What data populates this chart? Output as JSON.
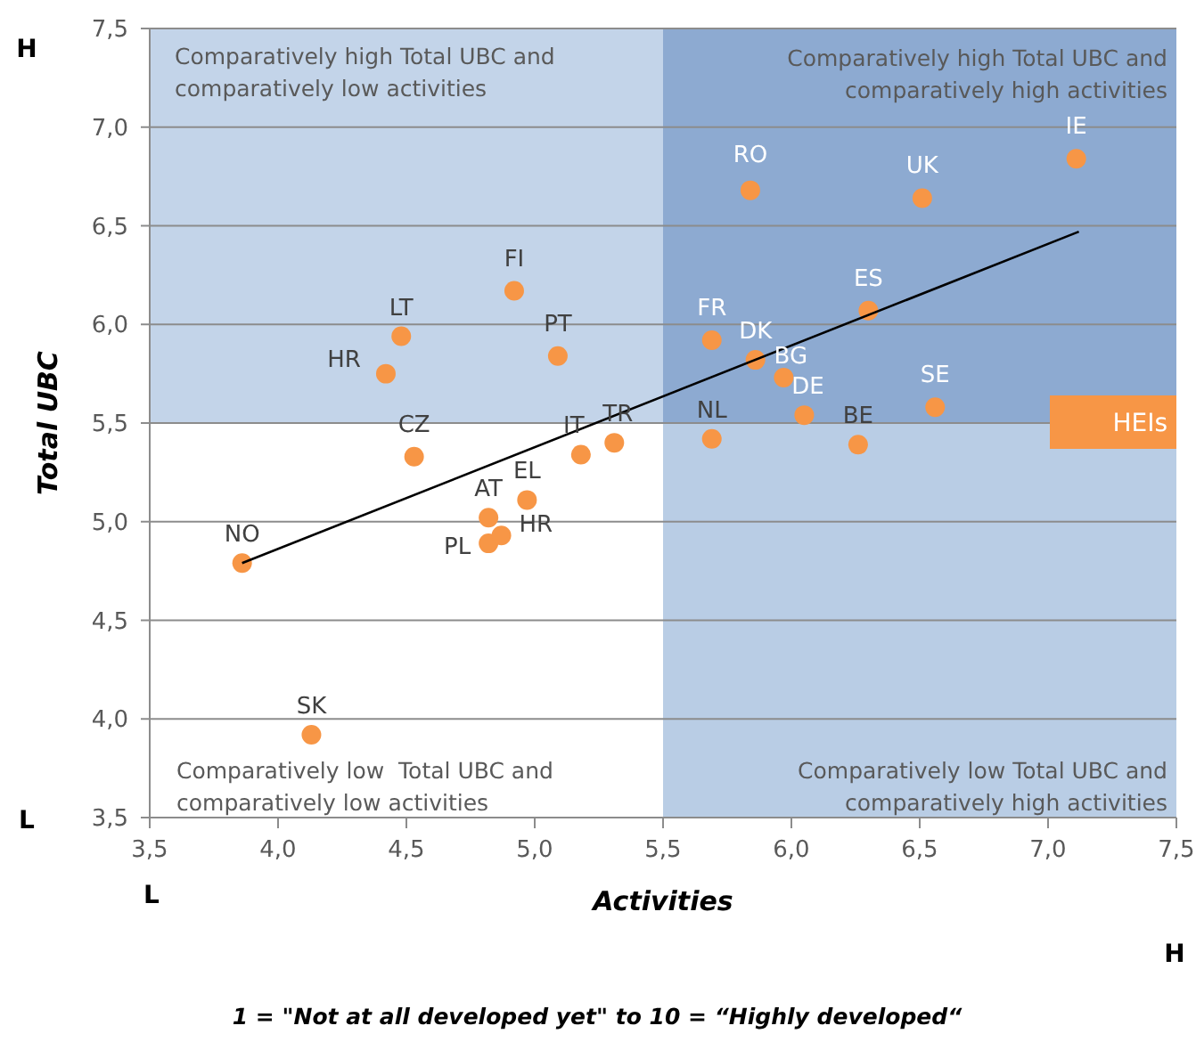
{
  "chart_data": {
    "type": "scatter",
    "xlabel": "Activities",
    "ylabel": "Total UBC",
    "xlim": [
      3.5,
      7.5
    ],
    "ylim": [
      3.5,
      7.5
    ],
    "xticks": [
      {
        "value": 3.5,
        "label": "3,5"
      },
      {
        "value": 4,
        "label": "4,0"
      },
      {
        "value": 4.5,
        "label": "4,5"
      },
      {
        "value": 5,
        "label": "5,0"
      },
      {
        "value": 5.5,
        "label": "5,5"
      },
      {
        "value": 6,
        "label": "6,0"
      },
      {
        "value": 6.5,
        "label": "6,5"
      },
      {
        "value": 7,
        "label": "7,0"
      },
      {
        "value": 7.5,
        "label": "7,5"
      }
    ],
    "yticks": [
      {
        "value": 3.5,
        "label": "3,5"
      },
      {
        "value": 4,
        "label": "4,0"
      },
      {
        "value": 4.5,
        "label": "4,5"
      },
      {
        "value": 5,
        "label": "5,0"
      },
      {
        "value": 5.5,
        "label": "5,5"
      },
      {
        "value": 6,
        "label": "6,0"
      },
      {
        "value": 6.5,
        "label": "6,5"
      },
      {
        "value": 7,
        "label": "7,0"
      },
      {
        "value": 7.5,
        "label": "7,5"
      }
    ],
    "grid": "y",
    "legend": "right",
    "marker": "circle",
    "bands": [
      {
        "axis": "x",
        "from": 5.5,
        "to": 7.5,
        "color": "#b9cde5"
      },
      {
        "axis": "y",
        "from": 5.5,
        "to": 7.5,
        "color": "#b9cde5"
      }
    ],
    "series": [
      {
        "name": "HEIs",
        "color": "#f79646",
        "x": [
          3.86,
          4.13,
          4.42,
          4.48,
          4.53,
          4.82,
          4.82,
          4.87,
          4.92,
          4.97,
          5.09,
          5.18,
          5.31,
          5.69,
          5.69,
          5.84,
          5.86,
          5.97,
          6.05,
          6.26,
          6.3,
          6.51,
          6.56,
          7.11
        ],
        "values": [
          4.79,
          3.92,
          5.75,
          5.94,
          5.33,
          5.02,
          4.89,
          4.93,
          6.17,
          5.11,
          5.84,
          5.34,
          5.4,
          5.92,
          5.42,
          6.68,
          5.82,
          5.73,
          5.54,
          5.39,
          6.07,
          6.64,
          5.58,
          6.84
        ]
      },
      {
        "type": "line",
        "color": "#000000",
        "marker": "none",
        "x": [
          3.86,
          7.12
        ],
        "values": [
          4.79,
          6.47
        ]
      }
    ],
    "annotations": [
      {
        "text": "NO",
        "x": 3.86,
        "y": 4.79
      },
      {
        "text": "SK",
        "x": 4.13,
        "y": 3.92
      },
      {
        "text": "HR",
        "x": 4.42,
        "y": 5.75
      },
      {
        "text": "LT",
        "x": 4.48,
        "y": 5.94
      },
      {
        "text": "CZ",
        "x": 4.53,
        "y": 5.33
      },
      {
        "text": "AT",
        "x": 4.82,
        "y": 5.02
      },
      {
        "text": "PL",
        "x": 4.82,
        "y": 4.89
      },
      {
        "text": "HR",
        "x": 4.87,
        "y": 4.93
      },
      {
        "text": "FI",
        "x": 4.92,
        "y": 6.17
      },
      {
        "text": "EL",
        "x": 4.97,
        "y": 5.11
      },
      {
        "text": "PT",
        "x": 5.09,
        "y": 5.84
      },
      {
        "text": "IT",
        "x": 5.18,
        "y": 5.34
      },
      {
        "text": "TR",
        "x": 5.31,
        "y": 5.4
      },
      {
        "text": "FR",
        "x": 5.69,
        "y": 5.92
      },
      {
        "text": "NL",
        "x": 5.69,
        "y": 5.42
      },
      {
        "text": "RO",
        "x": 5.84,
        "y": 6.68
      },
      {
        "text": "DK",
        "x": 5.86,
        "y": 5.82
      },
      {
        "text": "BG",
        "x": 5.97,
        "y": 5.73
      },
      {
        "text": "DE",
        "x": 6.05,
        "y": 5.54
      },
      {
        "text": "BE",
        "x": 6.26,
        "y": 5.39
      },
      {
        "text": "ES",
        "x": 6.3,
        "y": 6.07
      },
      {
        "text": "UK",
        "x": 6.51,
        "y": 6.64
      },
      {
        "text": "SE",
        "x": 6.56,
        "y": 5.58
      },
      {
        "text": "IE",
        "x": 7.11,
        "y": 6.84
      },
      "Comparatively high Total UBC and comparatively low activities",
      "Comparatively high Total UBC and comparatively high activities",
      "Comparatively low  Total UBC and comparatively low activities",
      "Comparatively low Total UBC and comparatively high activities",
      "H",
      "L",
      "L",
      "H",
      "1 = \"Not at all developed yet\" to 10 = “Highly developed“"
    ]
  }
}
